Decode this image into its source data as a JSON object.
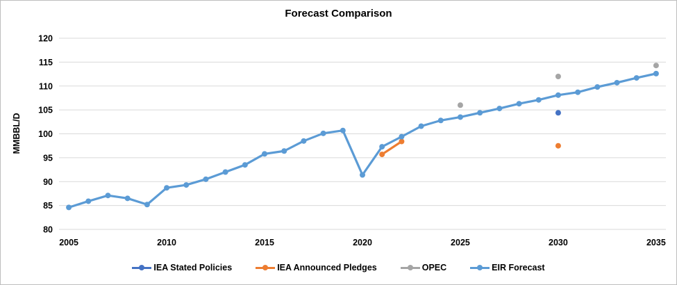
{
  "chart_data": {
    "type": "line",
    "title": "Forecast Comparison",
    "xlabel": "",
    "ylabel": "MMBBL/D",
    "ylim": [
      80,
      120
    ],
    "yticks": [
      80,
      85,
      90,
      95,
      100,
      105,
      110,
      115,
      120
    ],
    "xlim": [
      2005,
      2035
    ],
    "xticks": [
      2005,
      2010,
      2015,
      2020,
      2025,
      2030,
      2035
    ],
    "grid": "horizontal-only",
    "gridline_color": "#d9d9d9",
    "legend_position": "bottom",
    "series": [
      {
        "name": "IEA Stated Policies",
        "color": "#4472C4",
        "segments": [
          [
            [
              2030,
              104.4
            ]
          ]
        ]
      },
      {
        "name": "IEA Announced Pledges",
        "color": "#ED7D31",
        "segments": [
          [
            [
              2021,
              95.7
            ],
            [
              2022,
              98.4
            ]
          ],
          [
            [
              2030,
              97.5
            ]
          ]
        ]
      },
      {
        "name": "OPEC",
        "color": "#A5A5A5",
        "segments": [
          [
            [
              2025,
              106.0
            ]
          ],
          [
            [
              2030,
              112.0
            ]
          ],
          [
            [
              2035,
              114.3
            ]
          ]
        ]
      },
      {
        "name": "EIR Forecast",
        "color": "#5B9BD5",
        "segments": [
          [
            [
              2005,
              84.6
            ],
            [
              2006,
              85.9
            ],
            [
              2007,
              87.1
            ],
            [
              2008,
              86.5
            ],
            [
              2009,
              85.2
            ],
            [
              2010,
              88.7
            ],
            [
              2011,
              89.3
            ],
            [
              2012,
              90.5
            ],
            [
              2013,
              92.0
            ],
            [
              2014,
              93.5
            ],
            [
              2015,
              95.8
            ],
            [
              2016,
              96.4
            ],
            [
              2017,
              98.5
            ],
            [
              2018,
              100.1
            ],
            [
              2019,
              100.7
            ],
            [
              2020,
              91.4
            ],
            [
              2021,
              97.3
            ],
            [
              2022,
              99.4
            ],
            [
              2023,
              101.6
            ],
            [
              2024,
              102.8
            ],
            [
              2025,
              103.5
            ],
            [
              2026,
              104.4
            ],
            [
              2027,
              105.3
            ],
            [
              2028,
              106.3
            ],
            [
              2029,
              107.1
            ],
            [
              2030,
              108.1
            ],
            [
              2031,
              108.7
            ],
            [
              2032,
              109.8
            ],
            [
              2033,
              110.7
            ],
            [
              2034,
              111.7
            ],
            [
              2035,
              112.6
            ]
          ]
        ]
      }
    ]
  }
}
